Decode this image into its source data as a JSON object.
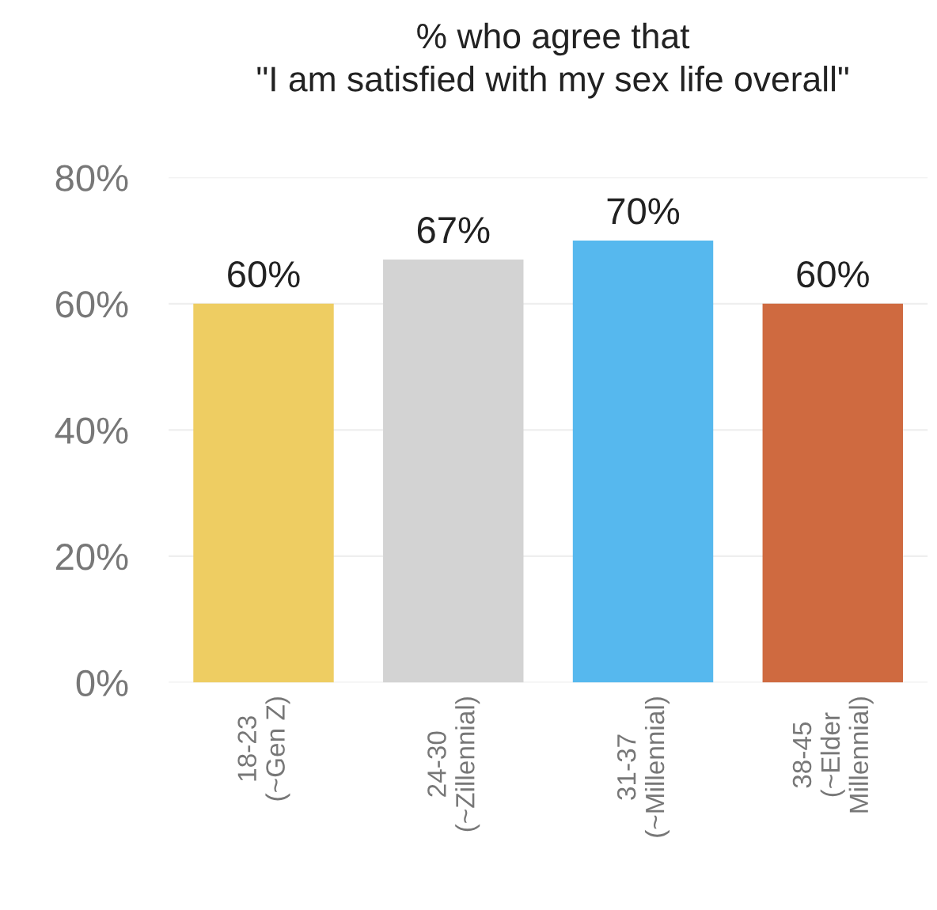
{
  "chart_data": {
    "type": "bar",
    "title": "% who agree that\n\"I am satisfied with my sex life overall\"",
    "categories": [
      "18-23\n(~Gen Z)",
      "24-30\n(~Zillennial)",
      "31-37\n(~Millennial)",
      "38-45\n(~Elder\nMillennial)"
    ],
    "values": [
      60,
      67,
      70,
      60
    ],
    "colors": [
      "#eecd62",
      "#d3d3d3",
      "#56b8ee",
      "#cf6a40"
    ],
    "value_labels": [
      "60%",
      "67%",
      "70%",
      "60%"
    ],
    "ylim": [
      0,
      80
    ],
    "yticks": [
      {
        "value": 0,
        "label": "0%"
      },
      {
        "value": 20,
        "label": "20%"
      },
      {
        "value": 40,
        "label": "40%"
      },
      {
        "value": 60,
        "label": "60%"
      },
      {
        "value": 80,
        "label": "80%"
      }
    ],
    "grid": "y"
  }
}
